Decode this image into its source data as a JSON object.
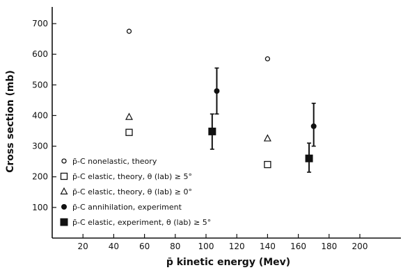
{
  "chart_data": {
    "type": "scatter",
    "xlabel": "p̄ kinetic energy (Mev)",
    "ylabel": "Cross section (mb)",
    "xlim": [
      0,
      230
    ],
    "ylim": [
      0,
      750
    ],
    "x_ticks": [
      20,
      40,
      60,
      80,
      100,
      120,
      140,
      160,
      180,
      200
    ],
    "y_ticks": [
      100,
      200,
      300,
      400,
      500,
      600,
      700
    ],
    "grid": false,
    "legend_position": "bottom-left",
    "series": [
      {
        "name": "p̄-C nonelastic, theory",
        "marker": "open-circle",
        "points": [
          {
            "x": 50,
            "y": 675
          },
          {
            "x": 140,
            "y": 585
          }
        ]
      },
      {
        "name": "p̄-C elastic, theory, θ (lab) ≥ 5°",
        "marker": "open-square",
        "points": [
          {
            "x": 50,
            "y": 345
          },
          {
            "x": 140,
            "y": 240
          }
        ]
      },
      {
        "name": "p̄-C elastic, theory, θ (lab) ≥ 0°",
        "marker": "open-triangle",
        "points": [
          {
            "x": 50,
            "y": 395
          },
          {
            "x": 140,
            "y": 325
          }
        ]
      },
      {
        "name": "p̄-C annihilation, experiment",
        "marker": "filled-circle",
        "points": [
          {
            "x": 107,
            "y": 480,
            "err_low": 405,
            "err_high": 555
          },
          {
            "x": 170,
            "y": 365,
            "err_low": 300,
            "err_high": 440
          }
        ]
      },
      {
        "name": "p̄-C elastic, experiment, θ (lab) ≥ 5°",
        "marker": "filled-square",
        "points": [
          {
            "x": 104,
            "y": 348,
            "err_low": 290,
            "err_high": 405
          },
          {
            "x": 167,
            "y": 260,
            "err_low": 215,
            "err_high": 310
          }
        ]
      }
    ]
  }
}
